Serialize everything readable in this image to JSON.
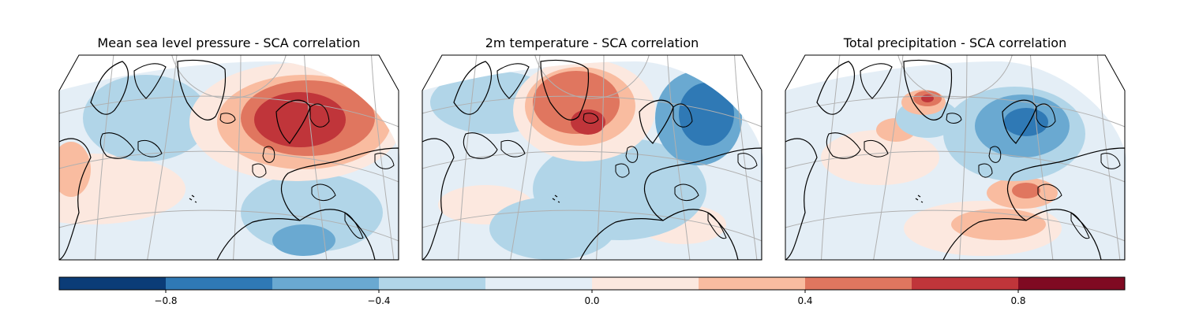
{
  "chart_data": [
    {
      "type": "heatmap",
      "title": "Mean sea level pressure - SCA correlation",
      "dominant_pattern": "positive correlation center over Scandinavia/Norwegian Sea (up to ~0.8), weak negative over Greenland and the subtropical Atlantic (~-0.2 to -0.6)",
      "value_range": [
        -0.6,
        0.8
      ]
    },
    {
      "type": "heatmap",
      "title": "2m temperature - SCA correlation",
      "dominant_pattern": "positive over Greenland/Iceland (up to ~0.8), negative over Scandinavia and Western Russia (down to ~-0.8)",
      "value_range": [
        -0.8,
        0.8
      ]
    },
    {
      "type": "heatmap",
      "title": "Total precipitation - SCA correlation",
      "dominant_pattern": "positive over SE Greenland and the central Mediterranean (~0.6), negative over Scandinavia and NW Europe (~-0.6)",
      "value_range": [
        -0.6,
        0.6
      ]
    }
  ],
  "colorbar": {
    "boundaries": [
      -1.0,
      -0.8,
      -0.6,
      -0.4,
      -0.2,
      0.0,
      0.2,
      0.4,
      0.6,
      0.8,
      1.0
    ],
    "colors": [
      "#0b3c77",
      "#2f79b5",
      "#6aa9d1",
      "#b1d5e8",
      "#e4eef6",
      "#fce8df",
      "#f9bca0",
      "#e0765f",
      "#c0353a",
      "#7f0a22"
    ],
    "ticks": [
      "−0.8",
      "−0.4",
      "0.0",
      "0.4",
      "0.8"
    ],
    "tick_values": [
      -0.8,
      -0.4,
      0.0,
      0.4,
      0.8
    ]
  }
}
